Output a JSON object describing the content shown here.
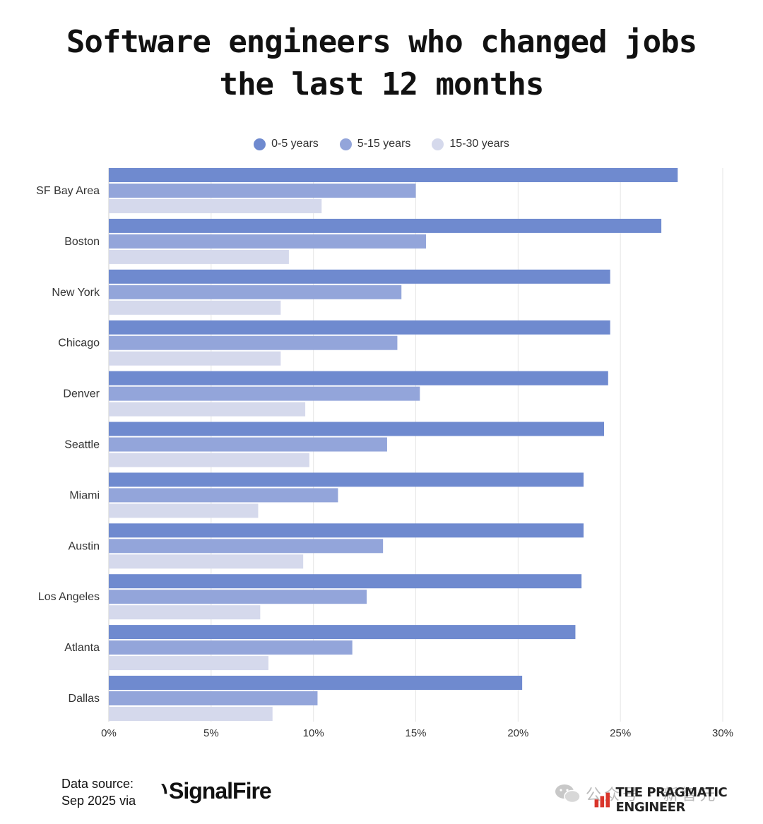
{
  "chart_data": {
    "type": "bar",
    "orientation": "horizontal",
    "title": [
      "Software engineers who changed jobs",
      "the last 12 months"
    ],
    "categories": [
      "SF Bay Area",
      "Boston",
      "New York",
      "Chicago",
      "Denver",
      "Seattle",
      "Miami",
      "Austin",
      "Los Angeles",
      "Atlanta",
      "Dallas"
    ],
    "series": [
      {
        "name": "0-5 years",
        "color": "#6f8acf",
        "values": [
          27.8,
          27.0,
          24.5,
          24.5,
          24.4,
          24.2,
          23.2,
          23.2,
          23.1,
          22.8,
          20.2
        ]
      },
      {
        "name": "5-15 years",
        "color": "#93a5da",
        "values": [
          15.0,
          15.5,
          14.3,
          14.1,
          15.2,
          13.6,
          11.2,
          13.4,
          12.6,
          11.9,
          10.2
        ]
      },
      {
        "name": "15-30 years",
        "color": "#d5d9ec",
        "values": [
          10.4,
          8.8,
          8.4,
          8.4,
          9.6,
          9.8,
          7.3,
          9.5,
          7.4,
          7.8,
          8.0
        ]
      }
    ],
    "xlim": [
      0,
      30
    ],
    "xticks": [
      "0%",
      "5%",
      "10%",
      "15%",
      "20%",
      "25%",
      "30%"
    ],
    "xtick_values": [
      0,
      5,
      10,
      15,
      20,
      25,
      30
    ],
    "grid": true,
    "legend": "top-center"
  },
  "footer": {
    "source_line1": "Data source:",
    "source_line2": "Sep 2025 via",
    "signalfire_mark": "⹚",
    "signalfire_name": "SignalFire",
    "watermark": "公众号 · 新智元",
    "pragmatic_name": "THE PRAGMATIC ENGINEER"
  },
  "icons": [
    "signalfire-logo",
    "wechat-icon",
    "pragmatic-engineer-logo"
  ]
}
